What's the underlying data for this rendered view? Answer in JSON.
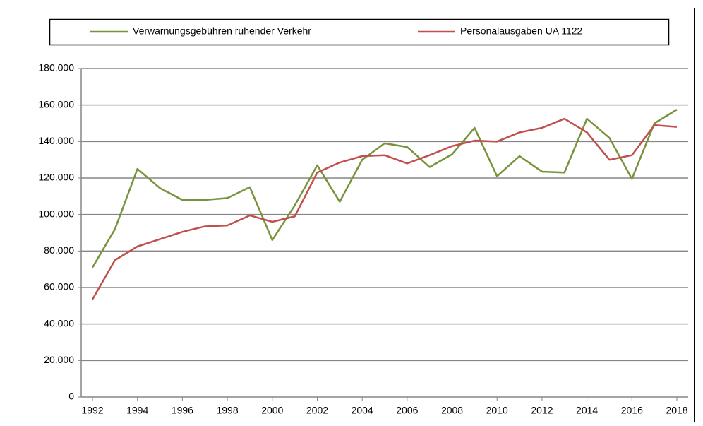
{
  "chart_data": {
    "type": "line",
    "x": [
      1992,
      1993,
      1994,
      1995,
      1996,
      1997,
      1998,
      1999,
      2000,
      2001,
      2002,
      2003,
      2004,
      2005,
      2006,
      2007,
      2008,
      2009,
      2010,
      2011,
      2012,
      2013,
      2014,
      2015,
      2016,
      2017,
      2018
    ],
    "series": [
      {
        "name": "Verwarnungsgebühren ruhender Verkehr",
        "color": "#77933c",
        "values": [
          71000,
          92000,
          125000,
          114500,
          108000,
          108000,
          109000,
          115000,
          86000,
          105000,
          127000,
          107000,
          130000,
          139000,
          137000,
          126000,
          133000,
          147500,
          121000,
          132000,
          123500,
          123000,
          152500,
          142000,
          119500,
          150000,
          157500
        ]
      },
      {
        "name": "Personalausgaben UA 1122",
        "color": "#c0504d",
        "values": [
          53500,
          75000,
          82500,
          86500,
          90500,
          93500,
          94000,
          99500,
          96000,
          99000,
          123000,
          128500,
          132000,
          132500,
          128000,
          132500,
          137500,
          140500,
          140000,
          145000,
          147500,
          152500,
          145000,
          130000,
          132500,
          149000,
          148000
        ]
      }
    ],
    "xlim": [
      1992,
      2018
    ],
    "xticks": [
      1992,
      1994,
      1996,
      1998,
      2000,
      2002,
      2004,
      2006,
      2008,
      2010,
      2012,
      2014,
      2016,
      2018
    ],
    "ylim": [
      0,
      180000
    ],
    "yticks": [
      0,
      {
        "value": 20000,
        "label": "20.000"
      },
      {
        "value": 40000,
        "label": "40.000"
      },
      {
        "value": 60000,
        "label": "60.000"
      },
      {
        "value": 80000,
        "label": "80.000"
      },
      {
        "value": 100000,
        "label": "100.000"
      },
      {
        "value": 120000,
        "label": "120.000"
      },
      {
        "value": 140000,
        "label": "140.000"
      },
      {
        "value": 160000,
        "label": "160.000"
      },
      {
        "value": 180000,
        "label": "180.000"
      }
    ],
    "grid": true,
    "legend": "top"
  }
}
